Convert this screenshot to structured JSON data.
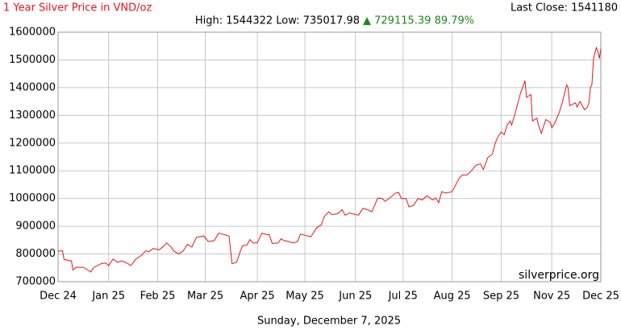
{
  "chart_data": {
    "type": "line",
    "title": "1 Year Silver Price in VND/oz",
    "stats": "High: 1544322 Low: 735017.98",
    "change": "▲ 729115.39 89.79%",
    "last_close": "Last Close: 1541180",
    "watermark": "silverprice.org",
    "date": "Sunday, December 7, 2025",
    "x": [
      0,
      3,
      4,
      9,
      10,
      12,
      17,
      20,
      22,
      24,
      29,
      32,
      34,
      37,
      40,
      43,
      47,
      49,
      52,
      56,
      59,
      61,
      64,
      68,
      71,
      73,
      76,
      78,
      81,
      84,
      87,
      90,
      93,
      98,
      101,
      105,
      108,
      113,
      115,
      117,
      120,
      122,
      124,
      127,
      129,
      131,
      134,
      137,
      140,
      142,
      144,
      148,
      150,
      152,
      155,
      158,
      161,
      163,
      167,
      170,
      174,
      177,
      179,
      182,
      184,
      188,
      191,
      193,
      196,
      198,
      202,
      205,
      208,
      211,
      215,
      218,
      220,
      223,
      227,
      229,
      231,
      234,
      236,
      239,
      242,
      245,
      248,
      252,
      254,
      256,
      258,
      261,
      265,
      267,
      270,
      272,
      275,
      278,
      281,
      284,
      286,
      289,
      292,
      294,
      296,
      298,
      300,
      302,
      304,
      305,
      307,
      309,
      311,
      314,
      315,
      318,
      319,
      322,
      323,
      325,
      328,
      331,
      332,
      334,
      337,
      339,
      342,
      343,
      344,
      346,
      348,
      349,
      351,
      354,
      356,
      357,
      358,
      359,
      360,
      361,
      362,
      363,
      364,
      365
    ],
    "series": [
      {
        "name": "Silver",
        "color": "#e8141b",
        "values": [
          810000,
          812000,
          780000,
          775000,
          742000,
          752000,
          752000,
          742000,
          735018,
          752000,
          765000,
          768000,
          758000,
          782000,
          770000,
          775000,
          765000,
          758000,
          780000,
          795000,
          812000,
          808000,
          820000,
          815000,
          828000,
          840000,
          825000,
          810000,
          800000,
          810000,
          835000,
          825000,
          860000,
          865000,
          845000,
          848000,
          875000,
          868000,
          865000,
          765000,
          770000,
          800000,
          830000,
          832000,
          852000,
          840000,
          840000,
          875000,
          870000,
          870000,
          838000,
          840000,
          855000,
          848000,
          845000,
          840000,
          845000,
          872000,
          866000,
          862000,
          895000,
          905000,
          935000,
          952000,
          942000,
          945000,
          960000,
          940000,
          948000,
          945000,
          940000,
          965000,
          960000,
          952000,
          1002000,
          1000000,
          990000,
          1002000,
          1020000,
          1022000,
          1000000,
          1000000,
          970000,
          975000,
          1000000,
          995000,
          1010000,
          995000,
          1002000,
          985000,
          1025000,
          1020000,
          1025000,
          1045000,
          1075000,
          1085000,
          1085000,
          1100000,
          1120000,
          1125000,
          1105000,
          1148000,
          1160000,
          1200000,
          1225000,
          1240000,
          1230000,
          1265000,
          1280000,
          1265000,
          1300000,
          1340000,
          1380000,
          1425000,
          1365000,
          1375000,
          1280000,
          1290000,
          1265000,
          1235000,
          1285000,
          1275000,
          1255000,
          1272000,
          1310000,
          1345000,
          1410000,
          1400000,
          1335000,
          1340000,
          1345000,
          1330000,
          1350000,
          1320000,
          1330000,
          1345000,
          1400000,
          1410000,
          1500000,
          1525000,
          1544322,
          1530000,
          1505000,
          1541180
        ]
      }
    ],
    "xlim": [
      0,
      365
    ],
    "xticks": [
      {
        "value": 0,
        "label": "Dec 24"
      },
      {
        "value": 34,
        "label": "Jan 25"
      },
      {
        "value": 67,
        "label": "Feb 25"
      },
      {
        "value": 99,
        "label": "Mar 25"
      },
      {
        "value": 134,
        "label": "Apr 25"
      },
      {
        "value": 166,
        "label": "May 25"
      },
      {
        "value": 200,
        "label": "Jun 25"
      },
      {
        "value": 232,
        "label": "Jul 25"
      },
      {
        "value": 265,
        "label": "Aug 25"
      },
      {
        "value": 298,
        "label": "Sep 25"
      },
      {
        "value": 332,
        "label": "Nov 25"
      },
      {
        "value": 365,
        "label": "Dec 25"
      }
    ],
    "ylim": [
      700000,
      1600000
    ],
    "yticks": [
      700000,
      800000,
      900000,
      1000000,
      1100000,
      1200000,
      1300000,
      1400000,
      1500000,
      1600000
    ],
    "grid": true
  }
}
